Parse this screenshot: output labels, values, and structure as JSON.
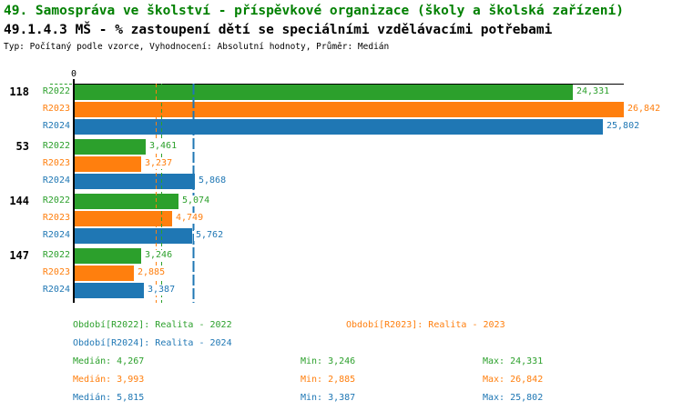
{
  "header": {
    "title_line1": "49. Samospráva ve školství - příspěvkové organizace (školy a školská zařízení)",
    "title_line2": "49.1.4.3 MŠ - % zastoupení dětí se speciálními vzdělávacími potřebami",
    "meta_line": "Typ: Počítaný podle vzorce, Vyhodnocení: Absolutní hodnoty, Průměr: Medián"
  },
  "colors": {
    "title_green": "#008000",
    "text_black": "#000000",
    "axis": "#000000",
    "background": "#FFFFFF"
  },
  "chart_data": {
    "type": "bar",
    "orientation": "horizontal",
    "title": "49.1.4.3 MŠ - % zastoupení dětí se speciálními vzdělávacími potřebami",
    "xlim": [
      0,
      26.842
    ],
    "axis_zero_label": "0",
    "grid": false,
    "series_labels": [
      "R2022",
      "R2023",
      "R2024"
    ],
    "series_colors": [
      "#2CA02C",
      "#FF7F0E",
      "#1F77B4"
    ],
    "groups": [
      {
        "label": "118",
        "values": [
          24.331,
          26.842,
          25.802
        ],
        "display": [
          "24,331",
          "26,842",
          "25,802"
        ]
      },
      {
        "label": "53",
        "values": [
          3.461,
          3.237,
          5.868
        ],
        "display": [
          "3,461",
          "3,237",
          "5,868"
        ]
      },
      {
        "label": "144",
        "values": [
          5.074,
          4.749,
          5.762
        ],
        "display": [
          "5,074",
          "4,749",
          "5,762"
        ]
      },
      {
        "label": "147",
        "values": [
          3.246,
          2.885,
          3.387
        ],
        "display": [
          "3,246",
          "2,885",
          "3,387"
        ]
      }
    ],
    "median_lines": [
      {
        "series": "R2022",
        "value": 4.267,
        "style": "dashed"
      },
      {
        "series": "R2023",
        "value": 3.993,
        "style": "dashed"
      },
      {
        "series": "R2024",
        "value": 5.815,
        "style": "long-dash"
      }
    ],
    "stats": {
      "median": [
        4.267,
        3.993,
        5.815
      ],
      "min": [
        3.246,
        2.885,
        3.387
      ],
      "max": [
        24.331,
        26.842,
        25.802
      ]
    }
  },
  "legend": {
    "r2022": "Období[R2022]: Realita - 2022",
    "r2023": "Období[R2023]: Realita - 2023",
    "r2024": "Období[R2024]: Realita - 2024"
  },
  "stats_display": [
    {
      "median": "Medián: 4,267",
      "min": "Min: 3,246",
      "max": "Max: 24,331"
    },
    {
      "median": "Medián: 3,993",
      "min": "Min: 2,885",
      "max": "Max: 26,842"
    },
    {
      "median": "Medián: 5,815",
      "min": "Min: 3,387",
      "max": "Max: 25,802"
    }
  ]
}
